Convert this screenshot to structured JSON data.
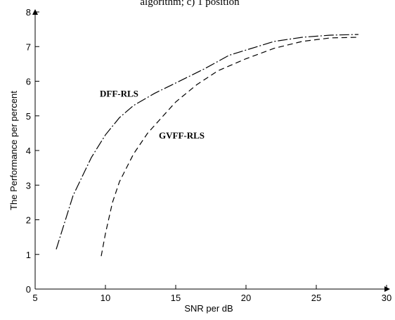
{
  "caption": "algorithm; c) 1 position",
  "chart_data": {
    "type": "line",
    "xlabel": "SNR per dB",
    "ylabel": "The Performance per percent",
    "xlim": [
      5,
      30
    ],
    "ylim": [
      0,
      8
    ],
    "x_ticks": [
      "5",
      "10",
      "15",
      "20",
      "25",
      "30"
    ],
    "y_ticks": [
      "0",
      "1",
      "2",
      "3",
      "4",
      "5",
      "6",
      "7",
      "8"
    ],
    "grid": false,
    "series": [
      {
        "name": "DFF-RLS",
        "style": "dash-dot",
        "color": "#000000",
        "x": [
          6.5,
          7.7,
          9.0,
          10.0,
          11.0,
          12.0,
          13.5,
          15.0,
          17.0,
          18.8,
          20.0,
          22.0,
          24.0,
          26.0,
          28.0
        ],
        "y": [
          1.15,
          2.7,
          3.8,
          4.45,
          4.95,
          5.3,
          5.65,
          5.95,
          6.35,
          6.75,
          6.9,
          7.15,
          7.27,
          7.33,
          7.35
        ]
      },
      {
        "name": "GVFF-RLS",
        "style": "dashed",
        "color": "#000000",
        "x": [
          9.7,
          10.0,
          10.5,
          11.0,
          12.0,
          13.0,
          14.0,
          15.0,
          16.5,
          18.0,
          20.0,
          22.0,
          24.0,
          26.0,
          28.0
        ],
        "y": [
          0.95,
          1.6,
          2.5,
          3.1,
          3.9,
          4.5,
          4.95,
          5.4,
          5.9,
          6.3,
          6.65,
          6.95,
          7.15,
          7.25,
          7.27
        ]
      }
    ],
    "annotations": [
      {
        "text": "DFF-RLS",
        "x": 9.6,
        "y": 5.55
      },
      {
        "text": "GVFF-RLS",
        "x": 13.8,
        "y": 4.35
      }
    ]
  }
}
